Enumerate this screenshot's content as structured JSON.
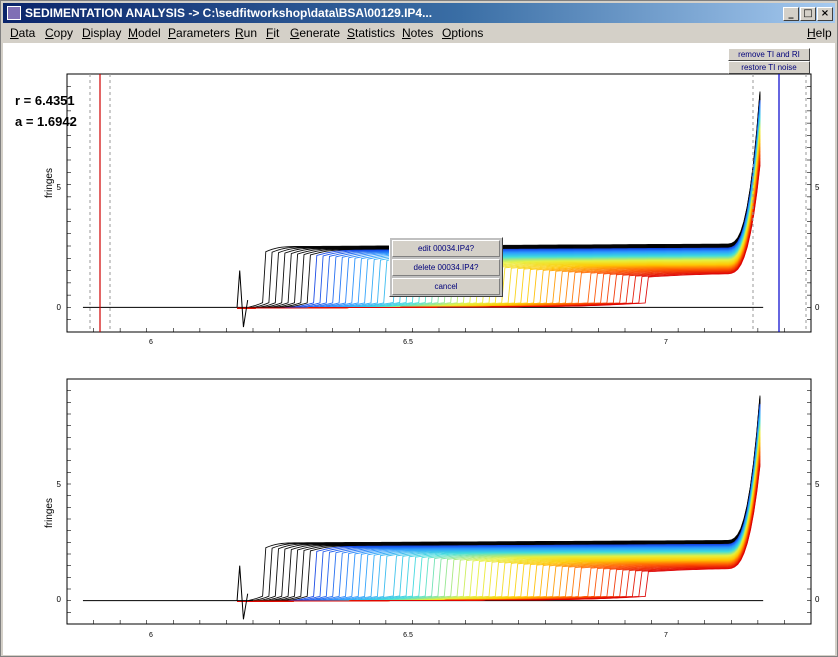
{
  "window": {
    "title": "SEDIMENTATION ANALYSIS -> C:\\sedfitworkshop\\data\\BSA\\00129.IP4...",
    "minimize": "_",
    "maximize": "□",
    "close": "×"
  },
  "menu": {
    "items": [
      "Data",
      "Copy",
      "Display",
      "Model",
      "Parameters",
      "Run",
      "Fit",
      "Generate",
      "Statistics",
      "Notes",
      "Options"
    ],
    "help": "Help"
  },
  "params": {
    "r": "r = 6.4351",
    "a": "a = 1.6942"
  },
  "buttons": {
    "remove_ti_ri": "remove TI and RI",
    "restore_ti": "restore TI noise"
  },
  "context_menu": {
    "edit": "edit 00034.IP4?",
    "delete": "delete 00034.IP4?",
    "cancel": "cancel"
  },
  "plots": {
    "top": {
      "ylabel": "fringes",
      "y_ticks": [
        "5",
        "0"
      ],
      "x_ticks": [
        "6",
        "6.5",
        "7"
      ]
    },
    "bottom": {
      "ylabel": "fringes",
      "y_ticks": [
        "5",
        "0"
      ],
      "x_ticks": [
        "6",
        "6.5",
        "7"
      ]
    }
  },
  "chart_data": [
    {
      "type": "line",
      "title": "",
      "xlabel": "",
      "ylabel": "fringes",
      "xlim": [
        5.9,
        7.3
      ],
      "ylim": [
        -1,
        9.5
      ],
      "x_ticks": [
        6,
        6.5,
        7
      ],
      "y_ticks": [
        0,
        5
      ],
      "meniscus_x": 5.93,
      "bottom_x": 7.21,
      "plateau_levels": [
        1.3,
        2.5
      ],
      "peak_max": 9.0,
      "scan_count": 60
    },
    {
      "type": "line",
      "title": "",
      "xlabel": "",
      "ylabel": "fringes",
      "xlim": [
        5.9,
        7.3
      ],
      "ylim": [
        -1,
        9.5
      ],
      "x_ticks": [
        6,
        6.5,
        7
      ],
      "y_ticks": [
        0,
        5
      ],
      "plateau_levels": [
        1.3,
        2.5
      ],
      "peak_max": 9.0,
      "scan_count": 60
    }
  ]
}
